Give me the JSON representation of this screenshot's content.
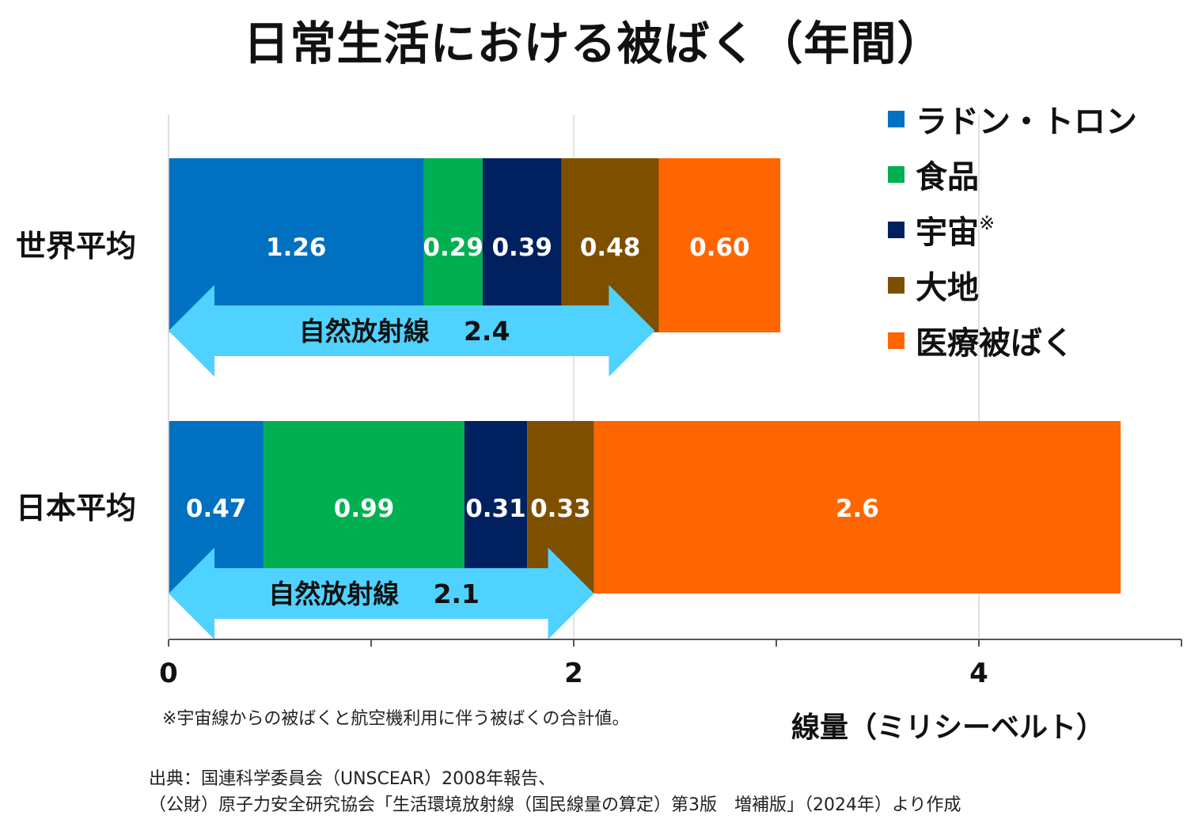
{
  "title": "日常生活における被ばく（年間）",
  "chart_data": {
    "type": "bar",
    "orientation": "horizontal",
    "stacked": true,
    "categories": [
      "世界平均",
      "日本平均"
    ],
    "series": [
      {
        "name": "ラドン・トロン",
        "color": "#0070C0",
        "values": [
          1.26,
          0.47
        ],
        "labels": [
          "1.26",
          "0.47"
        ]
      },
      {
        "name": "食品",
        "color": "#00B050",
        "values": [
          0.29,
          0.99
        ],
        "labels": [
          "0.29",
          "0.99"
        ]
      },
      {
        "name": "宇宙",
        "note_mark": "※",
        "color": "#002060",
        "values": [
          0.39,
          0.31
        ],
        "labels": [
          "0.39",
          "0.31"
        ]
      },
      {
        "name": "大地",
        "color": "#7F4F00",
        "values": [
          0.48,
          0.33
        ],
        "labels": [
          "0.48",
          "0.33"
        ]
      },
      {
        "name": "医療被ばく",
        "color": "#FF6600",
        "values": [
          0.6,
          2.6
        ],
        "labels": [
          "0.60",
          "2.6"
        ]
      }
    ],
    "annotations": [
      {
        "category": "世界平均",
        "label": "自然放射線",
        "value_label": "2.4",
        "value": 2.4,
        "color": "#4FD2FF"
      },
      {
        "category": "日本平均",
        "label": "自然放射線",
        "value_label": "2.1",
        "value": 2.1,
        "color": "#4FD2FF"
      }
    ],
    "xlabel": "線量（ミリシーベルト）",
    "xlim": [
      0,
      5
    ],
    "xticks_labeled": [
      0,
      2,
      4
    ],
    "xticks_minor": [
      1,
      3,
      5
    ],
    "grid": "vertical at major ticks",
    "legend_position": "top-right"
  },
  "footnote": "※宇宙線からの被ばくと航空機利用に伴う被ばくの合計値。",
  "source_lines": [
    "出典：国連科学委員会（UNSCEAR）2008年報告、",
    "（公財）原子力安全研究協会「生活環境放射線（国民線量の算定）第3版　増補版」（2024年）より作成"
  ]
}
